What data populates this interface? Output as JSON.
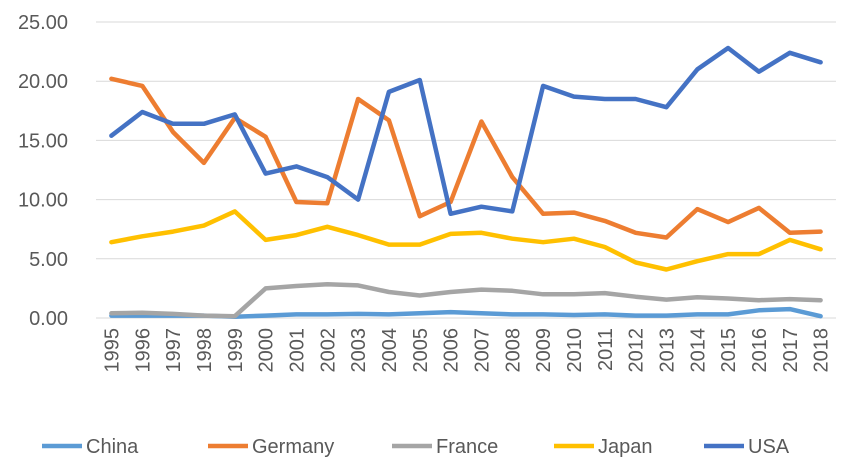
{
  "chart_data": {
    "type": "line",
    "title": "",
    "xlabel": "",
    "ylabel": "",
    "ylim": [
      0,
      25
    ],
    "y_ticks": [
      "0.00",
      "5.00",
      "10.00",
      "15.00",
      "20.00",
      "25.00"
    ],
    "y_tick_values": [
      0,
      5,
      10,
      15,
      20,
      25
    ],
    "grid": true,
    "legend_position": "bottom",
    "categories": [
      "1995",
      "1996",
      "1997",
      "1998",
      "1999",
      "2000",
      "2001",
      "2002",
      "2003",
      "2004",
      "2005",
      "2006",
      "2007",
      "2008",
      "2009",
      "2010",
      "2011",
      "2012",
      "2013",
      "2014",
      "2015",
      "2016",
      "2017",
      "2018"
    ],
    "series": [
      {
        "name": "China",
        "color": "#5B9BD5",
        "values": [
          0.2,
          0.2,
          0.2,
          0.2,
          0.1,
          0.2,
          0.3,
          0.3,
          0.35,
          0.3,
          0.4,
          0.5,
          0.4,
          0.3,
          0.3,
          0.25,
          0.3,
          0.2,
          0.2,
          0.3,
          0.3,
          0.65,
          0.75,
          0.15
        ]
      },
      {
        "name": "Germany",
        "color": "#ED7D31",
        "values": [
          20.2,
          19.6,
          15.7,
          13.1,
          16.9,
          15.3,
          9.8,
          9.7,
          18.5,
          16.7,
          8.6,
          9.8,
          16.6,
          11.9,
          8.8,
          8.9,
          8.2,
          7.2,
          6.8,
          9.2,
          8.1,
          9.3,
          7.2,
          7.3
        ]
      },
      {
        "name": "France",
        "color": "#A5A5A5",
        "values": [
          0.4,
          0.45,
          0.35,
          0.2,
          0.15,
          2.5,
          2.7,
          2.85,
          2.75,
          2.2,
          1.9,
          2.2,
          2.4,
          2.3,
          2.0,
          2.0,
          2.1,
          1.8,
          1.55,
          1.75,
          1.65,
          1.5,
          1.6,
          1.5
        ]
      },
      {
        "name": "Japan",
        "color": "#FFC000",
        "values": [
          6.4,
          6.9,
          7.3,
          7.8,
          9.0,
          6.6,
          7.0,
          7.7,
          7.0,
          6.2,
          6.2,
          7.1,
          7.2,
          6.7,
          6.4,
          6.7,
          6.0,
          4.7,
          4.1,
          4.8,
          5.4,
          5.4,
          6.6,
          5.8
        ]
      },
      {
        "name": "USA",
        "color": "#4472C4",
        "values": [
          15.4,
          17.4,
          16.4,
          16.4,
          17.2,
          12.2,
          12.8,
          11.9,
          10.0,
          19.1,
          20.1,
          8.8,
          9.4,
          9.0,
          19.6,
          18.7,
          18.5,
          18.5,
          17.8,
          21.0,
          22.8,
          20.8,
          22.4,
          21.6
        ]
      }
    ]
  }
}
